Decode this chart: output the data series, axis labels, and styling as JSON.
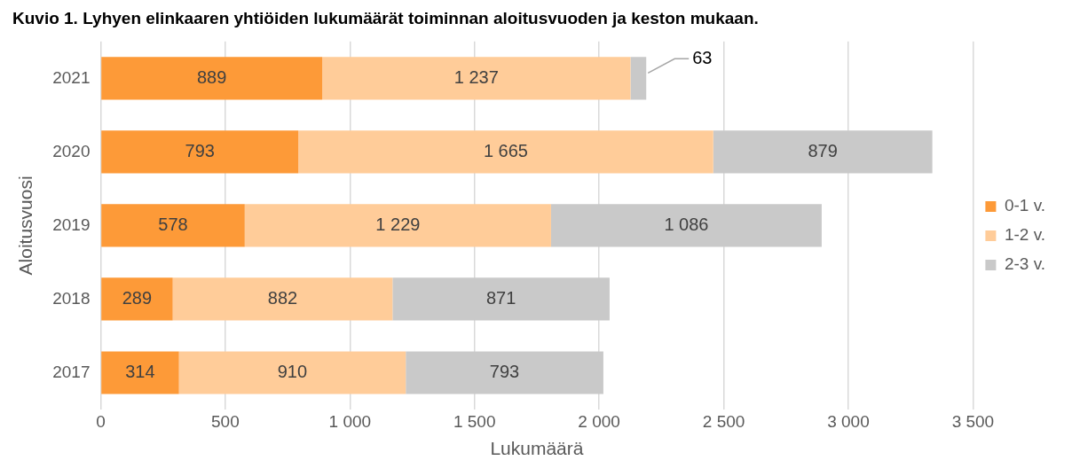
{
  "chart_data": {
    "type": "bar",
    "orientation": "horizontal",
    "stacked": true,
    "title": "Kuvio 1. Lyhyen elinkaaren yhtiöiden lukumäärät toiminnan aloitusvuoden ja keston mukaan.",
    "xlabel": "Lukumäärä",
    "ylabel": "Aloitusvuosi",
    "categories": [
      "2021",
      "2020",
      "2019",
      "2018",
      "2017"
    ],
    "series": [
      {
        "name": "0-1 v.",
        "color": "#fd9a38",
        "values": [
          889,
          793,
          578,
          289,
          314
        ],
        "value_labels": [
          "889",
          "793",
          "578",
          "289",
          "314"
        ]
      },
      {
        "name": "1-2 v.",
        "color": "#ffcc99",
        "values": [
          1237,
          1665,
          1229,
          882,
          910
        ],
        "value_labels": [
          "1 237",
          "1 665",
          "1 229",
          "882",
          "910"
        ]
      },
      {
        "name": "2-3 v.",
        "color": "#c9c9c9",
        "values": [
          63,
          879,
          1086,
          871,
          793
        ],
        "value_labels": [
          "63",
          "879",
          "1 086",
          "871",
          "793"
        ]
      }
    ],
    "xlim": [
      0,
      3500
    ],
    "xticks": [
      0,
      500,
      {
        "value": 1000,
        "label": "1 000"
      },
      {
        "value": 1500,
        "label": "1 500"
      },
      {
        "value": 2000,
        "label": "2 000"
      },
      {
        "value": 2500,
        "label": "2 500"
      },
      {
        "value": 3000,
        "label": "3 000"
      },
      {
        "value": 3500,
        "label": "3 500"
      }
    ],
    "grid": "x",
    "legend": "right"
  }
}
